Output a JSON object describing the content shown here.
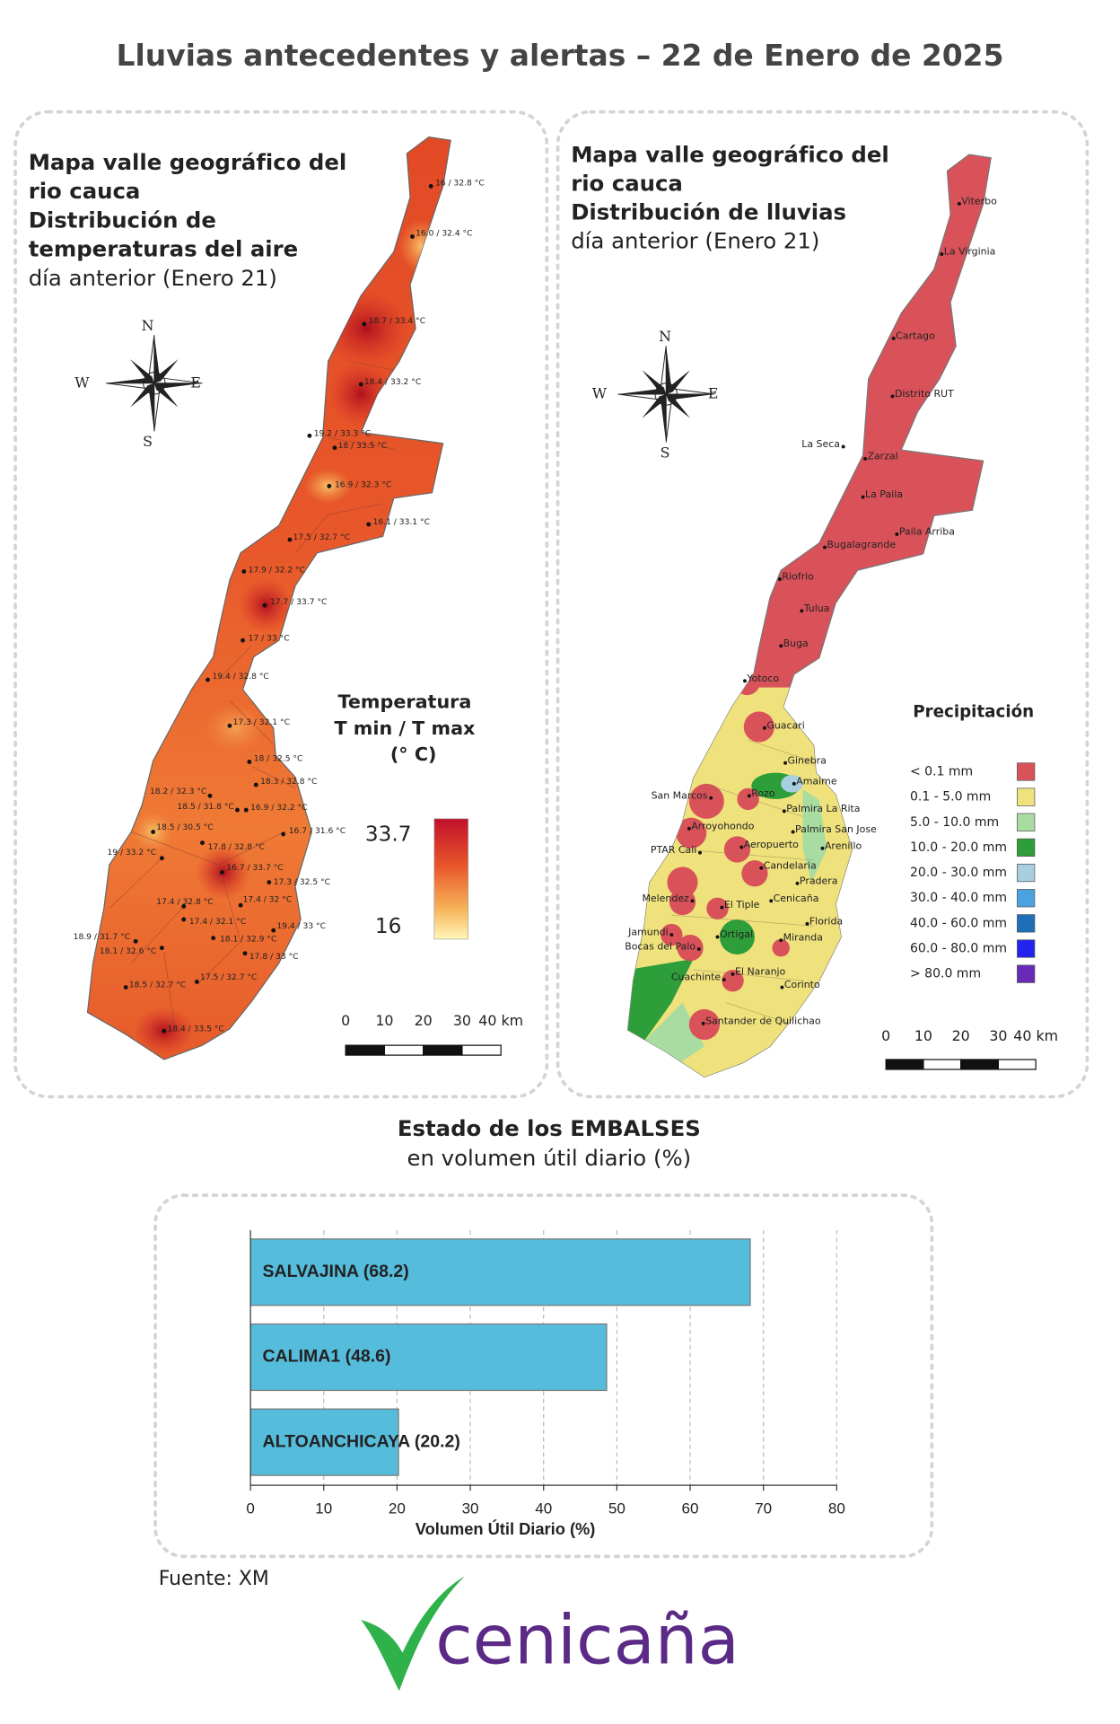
{
  "title": "Lluvias antecedentes y alertas – 22 de Enero de 2025",
  "temperature_map": {
    "title_lines": [
      {
        "text": "Mapa valle geográfico del",
        "bold": true
      },
      {
        "text": "rio cauca",
        "bold": true
      },
      {
        "text": "Distribución de",
        "bold": true
      },
      {
        "text": "temperaturas del aire",
        "bold": true
      },
      {
        "text": "día anterior (Enero 21)",
        "bold": false
      }
    ],
    "compass": [
      "N",
      "W",
      "E",
      "S"
    ],
    "legend": {
      "title_lines": [
        "Temperatura",
        "T min / T max",
        "(° C)"
      ],
      "max": 33.7,
      "min": 16
    },
    "scale_ticks": [
      "0",
      "10",
      "20",
      "30",
      "40 km"
    ],
    "stations": [
      "16 / 32.8 °C",
      "16.0 / 32.4 °C",
      "18.7 / 33.4 °C",
      "18.4 / 33.2 °C",
      "19.2 / 33.3 °C",
      "18 / 33.5 °C",
      "16.9 / 32.3 °C",
      "16.1 / 33.1 °C",
      "17.5 / 32.7 °C",
      "17.9 / 32.2 °C",
      "17.7 / 33.7 °C",
      "17 / 33 °C",
      "19.4 / 32.8 °C",
      "17.3 / 32.1 °C",
      "18 / 32.5 °C",
      "18.3 / 32.8 °C",
      "18.2 / 32.3 °C",
      "18.5 / 31.8 °C",
      "16.9 / 32.2 °C",
      "18.5 / 30.5 °C",
      "16.7 / 31.6 °C",
      "17.8 / 32.8 °C",
      "19 / 33.2 °C",
      "16.7 / 33.7 °C",
      "17.3 / 32.5 °C",
      "17.4 / 32 °C",
      "17.4 / 32.8 °C",
      "17.4 / 32.1 °C",
      "19.4 / 33 °C",
      "18.9 / 31.7 °C",
      "18.1 / 32.9 °C",
      "18.1 / 32.6 °C",
      "17.8 / 33 °C",
      "17.5 / 32.7 °C",
      "18.5 / 32.7 °C",
      "18.4 / 33.5 °C"
    ]
  },
  "rain_map": {
    "title_lines": [
      {
        "text": "Mapa valle geográfico del",
        "bold": true
      },
      {
        "text": "rio cauca",
        "bold": true
      },
      {
        "text": "Distribución de lluvias",
        "bold": true
      },
      {
        "text": "día anterior (Enero 21)",
        "bold": false
      }
    ],
    "compass": [
      "N",
      "W",
      "E",
      "S"
    ],
    "legend": {
      "title": "Precipitación",
      "classes": [
        {
          "label": "< 0.1 mm",
          "color": "#d9525a"
        },
        {
          "label": "0.1 - 5.0 mm",
          "color": "#efe17c"
        },
        {
          "label": "5.0 - 10.0 mm",
          "color": "#a9dca0"
        },
        {
          "label": "10.0 - 20.0 mm",
          "color": "#2e9e3a"
        },
        {
          "label": "20.0 - 30.0 mm",
          "color": "#a8cfe0"
        },
        {
          "label": "30.0 - 40.0 mm",
          "color": "#4aa3e0"
        },
        {
          "label": "40.0 - 60.0 mm",
          "color": "#1f6fb8"
        },
        {
          "label": "60.0 - 80.0 mm",
          "color": "#2323ee"
        },
        {
          "label": "> 80.0 mm",
          "color": "#6a2ab8"
        }
      ]
    },
    "scale_ticks": [
      "0",
      "10",
      "20",
      "30",
      "40 km"
    ],
    "stations": [
      "Viterbo",
      "La Virginia",
      "Cartago",
      "Distrito RUT",
      "La Seca",
      "Zarzal",
      "La Paila",
      "Paila Arriba",
      "Bugalagrande",
      "Riofrio",
      "Tulua",
      "Buga",
      "Yotoco",
      "Guacari",
      "Ginebra",
      "Amaime",
      "San Marcos",
      "Rozo",
      "Palmira La Rita",
      "Arroyohondo",
      "Palmira San Jose",
      "Arenillo",
      "PTAR Cali",
      "Aeropuerto",
      "Candelaria",
      "Pradera",
      "Melendez",
      "Cenicaña",
      "El Tiple",
      "Florida",
      "Jamundi",
      "Bocas del Palo",
      "Ortigal",
      "Miranda",
      "Cuachinte",
      "El Naranjo",
      "Corinto",
      "Santander de Quilichao"
    ]
  },
  "reservoirs": {
    "title": "Estado de los EMBALSES",
    "subtitle": "en volumen útil diario (%)"
  },
  "chart_data": {
    "type": "bar",
    "orientation": "horizontal",
    "categories": [
      "SALVAJINA (68.2)",
      "CALIMA1 (48.6)",
      "ALTOANCHICAYA (20.2)"
    ],
    "values": [
      68.2,
      48.6,
      20.2
    ],
    "color": "#56bcdc",
    "xlabel": "Volumen Útil Diario (%)",
    "xlim": [
      0,
      80
    ],
    "xticks": [
      0,
      10,
      20,
      30,
      40,
      50,
      60,
      70,
      80
    ],
    "grid": true
  },
  "source": "Fuente: XM",
  "logo": "cenicaña"
}
